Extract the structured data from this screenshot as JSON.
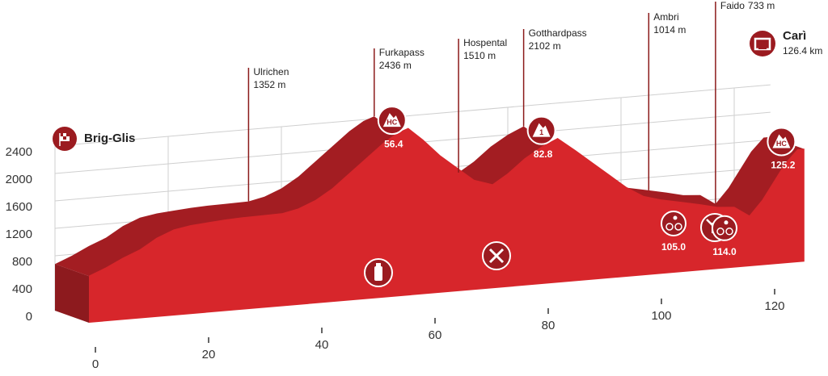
{
  "chart_data": {
    "type": "elevation-profile",
    "x": [
      0,
      3,
      6,
      9,
      12,
      15,
      18,
      21,
      24,
      27,
      30,
      34.2,
      37,
      40,
      43,
      46,
      49,
      52,
      54.5,
      56.4,
      59,
      62,
      65,
      68,
      71.3,
      74,
      77,
      80,
      82.8,
      86,
      89,
      92,
      95,
      98,
      101,
      104.9,
      108,
      111,
      114,
      116.7,
      119,
      121,
      123,
      125.2,
      126.4
    ],
    "values": [
      680,
      780,
      900,
      1000,
      1150,
      1250,
      1290,
      1310,
      1330,
      1340,
      1345,
      1352,
      1400,
      1500,
      1650,
      1850,
      2050,
      2250,
      2380,
      2436,
      2250,
      2000,
      1800,
      1600,
      1510,
      1650,
      1850,
      2000,
      2102,
      1900,
      1700,
      1500,
      1300,
      1150,
      1080,
      1014,
      960,
      900,
      880,
      733,
      950,
      1200,
      1450,
      1640,
      1640
    ],
    "color": "#d7262b",
    "xticks": [
      0,
      20,
      40,
      60,
      80,
      100,
      120
    ],
    "yticks": [
      0,
      400,
      800,
      1200,
      1600,
      2000,
      2400
    ],
    "grid": true,
    "start": {
      "name": "Brig-Glis"
    },
    "finish": {
      "name": "Carì",
      "distance": {
        "value": 126.4,
        "label": "126.4 km"
      }
    },
    "places": [
      {
        "name": "Ulrichen",
        "km": 34.2,
        "elevation": {
          "value": 1352,
          "label": "1352 m"
        }
      },
      {
        "name": "Furkapass",
        "km": 56.4,
        "elevation": {
          "value": 2436,
          "label": "2436 m"
        }
      },
      {
        "name": "Hospental",
        "km": 71.3,
        "elevation": {
          "value": 1510,
          "label": "1510 m"
        }
      },
      {
        "name": "Gotthardpass",
        "km": 82.8,
        "elevation": {
          "value": 2102,
          "label": "2102 m"
        }
      },
      {
        "name": "Ambri",
        "km": 104.9,
        "elevation": {
          "value": 1014,
          "label": "1014 m"
        }
      },
      {
        "name": "Faido",
        "km": 116.7,
        "elevation": {
          "value": 733,
          "label": "733 m"
        }
      }
    ],
    "climbs": [
      {
        "category": "HC",
        "km": {
          "value": 56.4,
          "label": "56.4"
        }
      },
      {
        "category": "1",
        "km": {
          "value": 82.8,
          "label": "82.8"
        }
      },
      {
        "category": "HC",
        "km": {
          "value": 125.2,
          "label": "125.2"
        }
      }
    ],
    "sprints": [
      {
        "value": 105,
        "label": "105.0"
      },
      {
        "value": 114,
        "label": "114.0"
      }
    ]
  }
}
